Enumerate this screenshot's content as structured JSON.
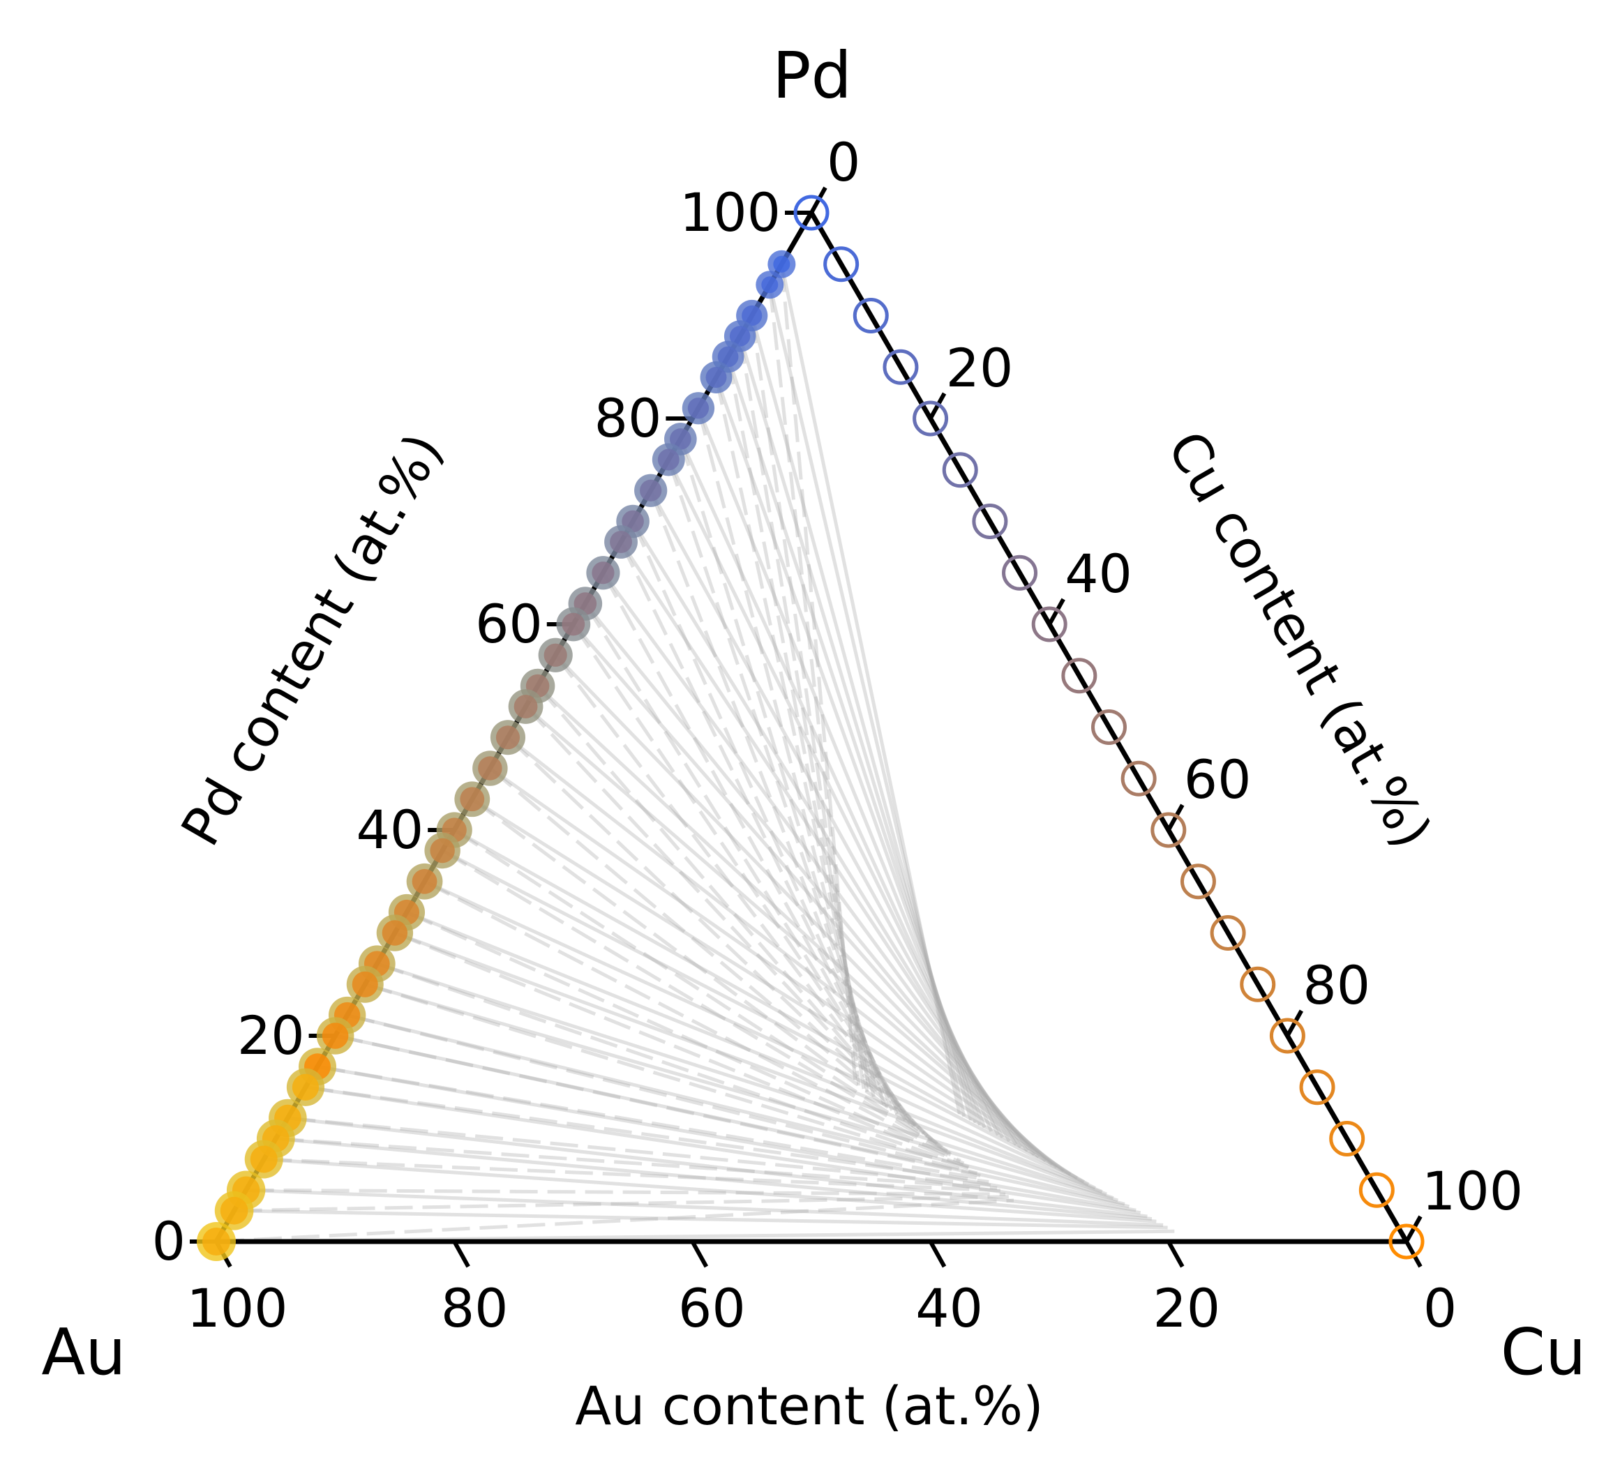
{
  "chart_data": {
    "type": "scatter",
    "subtype": "ternary",
    "vertex_labels": {
      "top": "Pd",
      "left": "Au",
      "right": "Cu"
    },
    "axis_labels": {
      "left": "Pd content (at.%)",
      "right": "Cu content (at.%)",
      "bottom": "Au content (at.%)"
    },
    "ticks": {
      "left": [
        "0",
        "20",
        "40",
        "60",
        "80",
        "100"
      ],
      "right": [
        "0",
        "20",
        "40",
        "60",
        "80",
        "100"
      ],
      "bottom": [
        "100",
        "80",
        "60",
        "40",
        "20",
        "0"
      ]
    },
    "range": [
      0,
      100
    ],
    "grid": false,
    "tie_line_color": "#aaaaaa",
    "colors": {
      "high_pd": "#4169e1",
      "low_pd": "#ff8c00",
      "au_rich": "#f0c419"
    },
    "series": [
      {
        "marker": "hollow-circle",
        "edge": "Pd-Cu",
        "points": [
          {
            "Pd": 100,
            "Cu": 0
          },
          {
            "Pd": 95,
            "Cu": 5
          },
          {
            "Pd": 90,
            "Cu": 10
          },
          {
            "Pd": 85,
            "Cu": 15
          },
          {
            "Pd": 80,
            "Cu": 20
          },
          {
            "Pd": 75,
            "Cu": 25
          },
          {
            "Pd": 70,
            "Cu": 30
          },
          {
            "Pd": 65,
            "Cu": 35
          },
          {
            "Pd": 60,
            "Cu": 40
          },
          {
            "Pd": 55,
            "Cu": 45
          },
          {
            "Pd": 50,
            "Cu": 50
          },
          {
            "Pd": 45,
            "Cu": 55
          },
          {
            "Pd": 40,
            "Cu": 60
          },
          {
            "Pd": 35,
            "Cu": 65
          },
          {
            "Pd": 30,
            "Cu": 70
          },
          {
            "Pd": 25,
            "Cu": 75
          },
          {
            "Pd": 20,
            "Cu": 80
          },
          {
            "Pd": 15,
            "Cu": 85
          },
          {
            "Pd": 10,
            "Cu": 90
          },
          {
            "Pd": 5,
            "Cu": 95
          },
          {
            "Pd": 0,
            "Cu": 100
          }
        ]
      },
      {
        "marker": "filled-circle",
        "edge": "Au-Pd",
        "points": [
          {
            "Pd": 95,
            "Au": 5
          },
          {
            "Pd": 93,
            "Au": 7
          },
          {
            "Pd": 90,
            "Au": 10
          },
          {
            "Pd": 88,
            "Au": 12
          },
          {
            "Pd": 86,
            "Au": 14
          },
          {
            "Pd": 84,
            "Au": 16
          },
          {
            "Pd": 81,
            "Au": 19
          },
          {
            "Pd": 78,
            "Au": 22
          },
          {
            "Pd": 76,
            "Au": 24
          },
          {
            "Pd": 73,
            "Au": 27
          },
          {
            "Pd": 70,
            "Au": 30
          },
          {
            "Pd": 68,
            "Au": 32
          },
          {
            "Pd": 65,
            "Au": 35
          },
          {
            "Pd": 62,
            "Au": 38
          },
          {
            "Pd": 60,
            "Au": 40
          },
          {
            "Pd": 57,
            "Au": 43
          },
          {
            "Pd": 54,
            "Au": 46
          },
          {
            "Pd": 52,
            "Au": 48
          },
          {
            "Pd": 49,
            "Au": 51
          },
          {
            "Pd": 46,
            "Au": 54
          },
          {
            "Pd": 43,
            "Au": 57
          },
          {
            "Pd": 40,
            "Au": 60
          },
          {
            "Pd": 38,
            "Au": 62
          },
          {
            "Pd": 35,
            "Au": 65
          },
          {
            "Pd": 32,
            "Au": 68
          },
          {
            "Pd": 30,
            "Au": 70
          },
          {
            "Pd": 27,
            "Au": 73
          },
          {
            "Pd": 25,
            "Au": 75
          },
          {
            "Pd": 22,
            "Au": 78
          },
          {
            "Pd": 20,
            "Au": 80
          },
          {
            "Pd": 17,
            "Au": 83
          },
          {
            "Pd": 15,
            "Au": 85
          },
          {
            "Pd": 12,
            "Au": 88
          },
          {
            "Pd": 10,
            "Au": 90
          },
          {
            "Pd": 8,
            "Au": 92
          },
          {
            "Pd": 5,
            "Au": 95
          },
          {
            "Pd": 3,
            "Au": 97
          },
          {
            "Pd": 0,
            "Au": 100
          }
        ]
      }
    ]
  }
}
